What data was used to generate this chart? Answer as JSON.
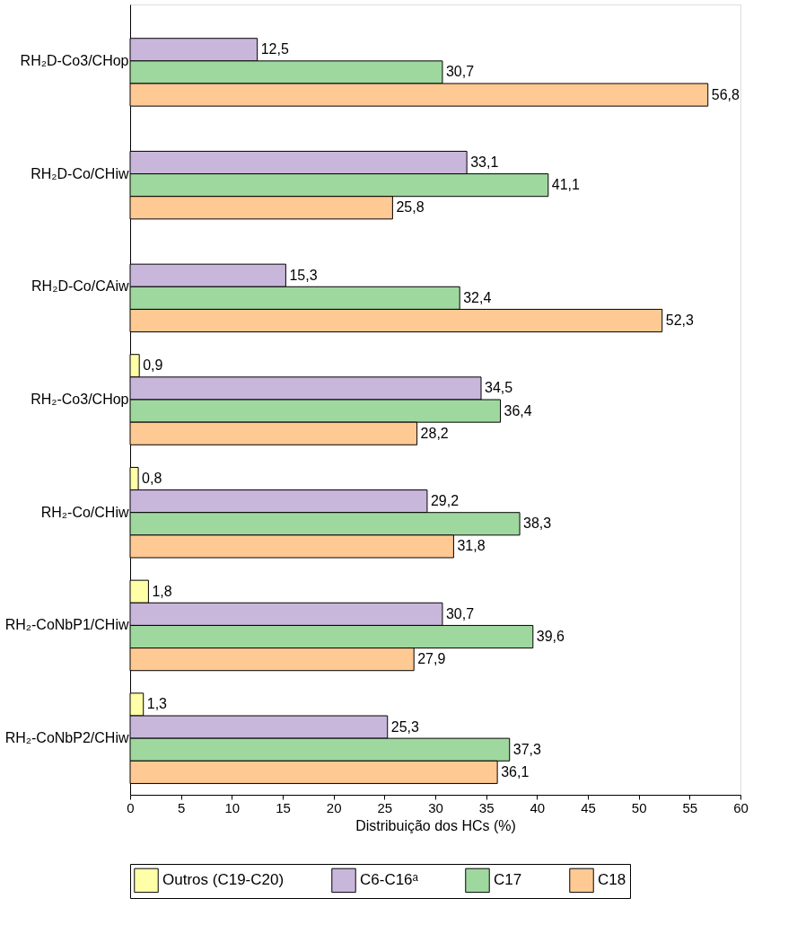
{
  "chart_data": {
    "type": "bar",
    "orientation": "horizontal",
    "xlabel": "Distribuição dos HCs (%)",
    "categories": [
      "RH₂D-Co3/CHop",
      "RH₂D-Co/CHiw",
      "RH₂D-Co/CAiw",
      "RH₂-Co3/CHop",
      "RH₂-Co/CHiw",
      "RH₂-CoNbP1/CHiw",
      "RH₂-CoNbP2/CHiw"
    ],
    "series": [
      {
        "name": "Outros (C19-C20)",
        "color": "#ffffa8",
        "values": [
          null,
          null,
          null,
          0.9,
          0.8,
          1.8,
          1.3
        ],
        "value_labels": [
          null,
          null,
          null,
          "0,9",
          "0,8",
          "1,8",
          "1,3"
        ]
      },
      {
        "name": "C6-C16ᵃ",
        "color": "#c9b6db",
        "values": [
          12.5,
          33.1,
          15.3,
          34.5,
          29.2,
          30.7,
          25.3
        ],
        "value_labels": [
          "12,5",
          "33,1",
          "15,3",
          "34,5",
          "29,2",
          "30,7",
          "25,3"
        ]
      },
      {
        "name": "C17",
        "color": "#9fd89f",
        "values": [
          30.7,
          41.1,
          32.4,
          36.4,
          38.3,
          39.6,
          37.3
        ],
        "value_labels": [
          "30,7",
          "41,1",
          "32,4",
          "36,4",
          "38,3",
          "39,6",
          "37,3"
        ]
      },
      {
        "name": "C18",
        "color": "#ffc994",
        "values": [
          56.8,
          25.8,
          52.3,
          28.2,
          31.8,
          27.9,
          36.1
        ],
        "value_labels": [
          "56,8",
          "25,8",
          "52,3",
          "28,2",
          "31,8",
          "27,9",
          "36,1"
        ]
      }
    ],
    "xlim": [
      0,
      60
    ],
    "xticks": [
      0,
      5,
      10,
      15,
      20,
      25,
      30,
      35,
      40,
      45,
      50,
      55,
      60
    ],
    "grid": false,
    "legend": "bottom"
  }
}
